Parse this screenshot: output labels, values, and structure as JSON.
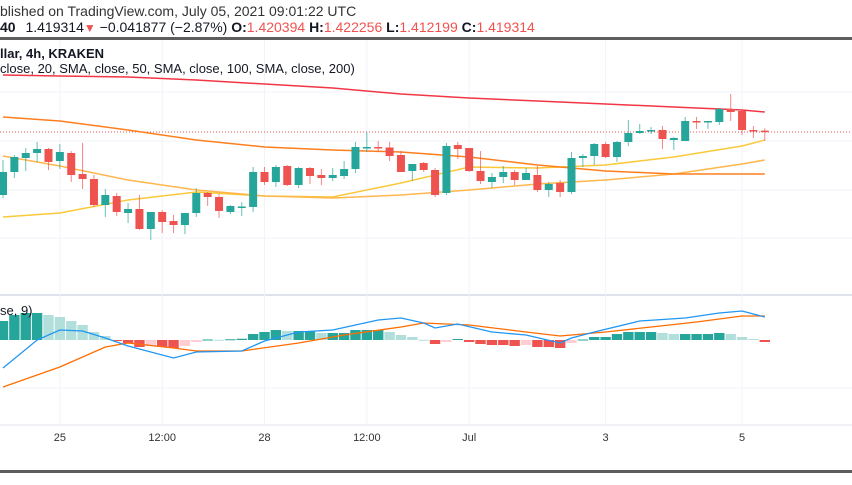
{
  "header": {
    "published": "blished on TradingView.com, July 05, 2021 09:01:22 UTC",
    "symbol_tail": "40",
    "last": "1.419314",
    "change": "−0.041877 (−2.87%)",
    "o_label": "O:",
    "o": "1.420394",
    "h_label": "H:",
    "h": "1.422256",
    "l_label": "L:",
    "l": "1.412199",
    "c_label": "C:",
    "c": "1.419314",
    "down_icon": "triangle-down-icon"
  },
  "legend": {
    "title": "llar, 4h, KRAKEN",
    "sma": "close, 20, SMA, close, 50, SMA, close, 100, SMA, close, 200)",
    "macd": "se, 9)"
  },
  "colors": {
    "up": "#26a69a",
    "down": "#ef5350",
    "up_light": "#b2dfdb",
    "down_light": "#ffcdd2",
    "sma20": "#f9c93a",
    "sma50": "#ffb74d",
    "sma100": "#ff7f1e",
    "sma200": "#f23645",
    "macd": "#2196f3",
    "signal": "#ff6d00",
    "grid": "#f0f3fa"
  },
  "chart_data": [
    {
      "type": "candlestick",
      "interval": "4h",
      "exchange": "KRAKEN",
      "x_ticks": [
        "25",
        "12:00",
        "28",
        "12:00",
        "Jul",
        "3",
        "5"
      ],
      "x_tick_times": [
        "06-25 00:00",
        "06-26 12:00",
        "06-28 00:00",
        "06-29 12:00",
        "07-01 00:00",
        "07-03 00:00",
        "07-05 00:00"
      ],
      "last_price": 1.419314,
      "grid": true,
      "candles": [
        [
          "06-24 04:00",
          1.3689,
          1.3969,
          1.3665,
          1.3873
        ],
        [
          "06-24 08:00",
          1.3873,
          1.4009,
          1.3825,
          1.3993
        ],
        [
          "06-24 12:00",
          1.3985,
          1.4065,
          1.3881,
          1.4025
        ],
        [
          "06-24 16:00",
          1.4025,
          1.4113,
          1.3953,
          1.4057
        ],
        [
          "06-24 20:00",
          1.4057,
          1.4065,
          1.3889,
          1.3953
        ],
        [
          "06-25 00:00",
          1.3961,
          1.4097,
          1.3897,
          1.4033
        ],
        [
          "06-25 04:00",
          1.4025,
          1.4041,
          1.3793,
          1.3849
        ],
        [
          "06-25 08:00",
          1.3857,
          1.4105,
          1.3737,
          1.3817
        ],
        [
          "06-25 12:00",
          1.3817,
          1.3849,
          1.3593,
          1.3609
        ],
        [
          "06-25 16:00",
          1.3609,
          1.3737,
          1.3513,
          1.3689
        ],
        [
          "06-25 20:00",
          1.3681,
          1.3705,
          1.3521,
          1.3553
        ],
        [
          "06-26 00:00",
          1.3545,
          1.3625,
          1.3465,
          1.3577
        ],
        [
          "06-26 04:00",
          1.3577,
          1.3689,
          1.3409,
          1.3417
        ],
        [
          "06-26 08:00",
          1.3417,
          1.3553,
          1.3329,
          1.3553
        ],
        [
          "06-26 12:00",
          1.3553,
          1.3569,
          1.3385,
          1.3473
        ],
        [
          "06-26 16:00",
          1.3481,
          1.3529,
          1.3385,
          1.3449
        ],
        [
          "06-26 20:00",
          1.3449,
          1.3545,
          1.3377,
          1.3545
        ],
        [
          "06-27 00:00",
          1.3545,
          1.3745,
          1.3513,
          1.3705
        ],
        [
          "06-27 04:00",
          1.3705,
          1.3713,
          1.3601,
          1.3673
        ],
        [
          "06-27 08:00",
          1.3673,
          1.3697,
          1.3505,
          1.3561
        ],
        [
          "06-27 12:00",
          1.3553,
          1.3609,
          1.3537,
          1.3601
        ],
        [
          "06-27 16:00",
          1.3593,
          1.3633,
          1.3521,
          1.3597
        ],
        [
          "06-27 20:00",
          1.3593,
          1.3913,
          1.3553,
          1.3873
        ],
        [
          "06-28 00:00",
          1.3873,
          1.3913,
          1.3769,
          1.3793
        ],
        [
          "06-28 04:00",
          1.3793,
          1.3929,
          1.3753,
          1.3913
        ],
        [
          "06-28 08:00",
          1.3921,
          1.3929,
          1.3761,
          1.3769
        ],
        [
          "06-28 12:00",
          1.3769,
          1.3913,
          1.3745,
          1.3905
        ],
        [
          "06-28 16:00",
          1.3905,
          1.3913,
          1.3777,
          1.3841
        ],
        [
          "06-28 20:00",
          1.3849,
          1.3897,
          1.3769,
          1.3825
        ],
        [
          "06-29 00:00",
          1.3825,
          1.3905,
          1.3801,
          1.3849
        ],
        [
          "06-29 04:00",
          1.3841,
          1.3961,
          1.3817,
          1.3897
        ],
        [
          "06-29 08:00",
          1.3897,
          1.4113,
          1.3865,
          1.4073
        ],
        [
          "06-29 12:00",
          1.4073,
          1.4193,
          1.4033,
          1.4073
        ],
        [
          "06-29 16:00",
          1.4073,
          1.4121,
          1.4033,
          1.4069
        ],
        [
          "06-29 20:00",
          1.4069,
          1.4113,
          1.3961,
          1.4001
        ],
        [
          "06-30 00:00",
          1.4009,
          1.4041,
          1.3873,
          1.3873
        ],
        [
          "06-30 04:00",
          1.3881,
          1.3937,
          1.3801,
          1.3937
        ],
        [
          "06-30 08:00",
          1.3945,
          1.3953,
          1.3873,
          1.3889
        ],
        [
          "06-30 12:00",
          1.3889,
          1.3905,
          1.3673,
          1.3689
        ],
        [
          "06-30 16:00",
          1.3705,
          1.4105,
          1.3689,
          1.4081
        ],
        [
          "06-30 20:00",
          1.4089,
          1.4113,
          1.3977,
          1.4057
        ],
        [
          "07-01 00:00",
          1.4065,
          1.4065,
          1.3873,
          1.3881
        ],
        [
          "07-01 04:00",
          1.3881,
          1.4041,
          1.3777,
          1.3801
        ],
        [
          "07-01 08:00",
          1.3793,
          1.3865,
          1.3745,
          1.3833
        ],
        [
          "07-01 12:00",
          1.3833,
          1.3921,
          1.3785,
          1.3873
        ],
        [
          "07-01 16:00",
          1.3873,
          1.3889,
          1.3769,
          1.3809
        ],
        [
          "07-01 20:00",
          1.3809,
          1.3905,
          1.3809,
          1.3865
        ],
        [
          "07-02 00:00",
          1.3849,
          1.3921,
          1.3713,
          1.3729
        ],
        [
          "07-02 04:00",
          1.3729,
          1.3793,
          1.3673,
          1.3777
        ],
        [
          "07-02 08:00",
          1.3785,
          1.3809,
          1.3673,
          1.3713
        ],
        [
          "07-02 12:00",
          1.3713,
          1.4033,
          1.3697,
          1.3985
        ],
        [
          "07-02 16:00",
          1.3985,
          1.4017,
          1.3913,
          1.4001
        ],
        [
          "07-02 20:00",
          1.4001,
          1.4105,
          1.3929,
          1.4097
        ],
        [
          "07-03 00:00",
          1.4097,
          1.4113,
          1.3985,
          1.3993
        ],
        [
          "07-03 04:00",
          1.3993,
          1.4121,
          1.3953,
          1.4113
        ],
        [
          "07-03 08:00",
          1.4113,
          1.4289,
          1.4081,
          1.4185
        ],
        [
          "07-03 12:00",
          1.4185,
          1.4257,
          1.4177,
          1.4201
        ],
        [
          "07-03 16:00",
          1.4201,
          1.4233,
          1.4177,
          1.4209
        ],
        [
          "07-03 20:00",
          1.4209,
          1.4241,
          1.4057,
          1.4137
        ],
        [
          "07-04 00:00",
          1.4129,
          1.4153,
          1.4049,
          1.4145
        ],
        [
          "07-04 04:00",
          1.4121,
          1.4313,
          1.4121,
          1.4281
        ],
        [
          "07-04 08:00",
          1.4281,
          1.4313,
          1.4217,
          1.4273
        ],
        [
          "07-04 12:00",
          1.4273,
          1.4281,
          1.4217,
          1.4281
        ],
        [
          "07-04 16:00",
          1.4273,
          1.4385,
          1.4249,
          1.4377
        ],
        [
          "07-04 20:00",
          1.4377,
          1.4497,
          1.4281,
          1.4353
        ],
        [
          "07-05 00:00",
          1.4361,
          1.4369,
          1.4169,
          1.4209
        ],
        [
          "07-05 04:00",
          1.4209,
          1.4241,
          1.4145,
          1.4201
        ],
        [
          "07-05 08:00",
          1.420394,
          1.422256,
          1.412199,
          1.419314
        ]
      ],
      "sma": [
        {
          "length": 20,
          "points": [
            [
              "06-24 04:00",
              1.3513
            ],
            [
              "06-25 00:00",
              1.3545
            ],
            [
              "06-26 00:00",
              1.3649
            ],
            [
              "06-27 00:00",
              1.3713
            ],
            [
              "06-28 00:00",
              1.3681
            ],
            [
              "06-29 00:00",
              1.3673
            ],
            [
              "06-30 00:00",
              1.3785
            ],
            [
              "07-01 00:00",
              1.3913
            ],
            [
              "07-02 00:00",
              1.3905
            ],
            [
              "07-03 00:00",
              1.3929
            ],
            [
              "07-04 00:00",
              1.3993
            ],
            [
              "07-05 00:00",
              1.4081
            ],
            [
              "07-05 08:00",
              1.4129
            ]
          ]
        },
        {
          "length": 50,
          "points": [
            [
              "06-24 04:00",
              1.4001
            ],
            [
              "06-25 00:00",
              1.3921
            ],
            [
              "06-26 00:00",
              1.3809
            ],
            [
              "06-27 00:00",
              1.3729
            ],
            [
              "06-28 00:00",
              1.3681
            ],
            [
              "06-29 00:00",
              1.3665
            ],
            [
              "06-30 00:00",
              1.3689
            ],
            [
              "07-01 00:00",
              1.3729
            ],
            [
              "07-02 00:00",
              1.3777
            ],
            [
              "07-03 00:00",
              1.3809
            ],
            [
              "07-04 00:00",
              1.3857
            ],
            [
              "07-05 00:00",
              1.3937
            ],
            [
              "07-05 08:00",
              1.3969
            ]
          ]
        },
        {
          "length": 100,
          "points": [
            [
              "06-24 04:00",
              1.4313
            ],
            [
              "06-25 00:00",
              1.4281
            ],
            [
              "06-26 00:00",
              1.4209
            ],
            [
              "06-27 00:00",
              1.4129
            ],
            [
              "06-28 00:00",
              1.4073
            ],
            [
              "06-29 00:00",
              1.4049
            ],
            [
              "06-30 00:00",
              1.4033
            ],
            [
              "07-01 00:00",
              1.3993
            ],
            [
              "07-02 00:00",
              1.3929
            ],
            [
              "07-03 00:00",
              1.3881
            ],
            [
              "07-04 00:00",
              1.3857
            ],
            [
              "07-05 00:00",
              1.3857
            ],
            [
              "07-05 08:00",
              1.3857
            ]
          ]
        },
        {
          "length": 200,
          "points": [
            [
              "06-24 04:00",
              1.4649
            ],
            [
              "06-25 00:00",
              1.4641
            ],
            [
              "06-26 00:00",
              1.4633
            ],
            [
              "06-27 00:00",
              1.4609
            ],
            [
              "06-28 00:00",
              1.4577
            ],
            [
              "06-29 00:00",
              1.4545
            ],
            [
              "06-30 00:00",
              1.4497
            ],
            [
              "07-01 00:00",
              1.4465
            ],
            [
              "07-02 00:00",
              1.4441
            ],
            [
              "07-03 00:00",
              1.4417
            ],
            [
              "07-04 00:00",
              1.4393
            ],
            [
              "07-05 00:00",
              1.4369
            ],
            [
              "07-05 08:00",
              1.4353
            ]
          ]
        }
      ]
    },
    {
      "type": "macd",
      "signal_length": 9,
      "histogram": [
        0.0076,
        0.01,
        0.0108,
        0.0108,
        0.01,
        0.0092,
        0.0076,
        0.006,
        0.0032,
        0.0016,
        -0.0004,
        -0.0012,
        -0.0028,
        -0.0024,
        -0.0028,
        -0.0032,
        -0.0024,
        -0.0008,
        0.0002,
        0.0001,
        0.0003,
        0.0005,
        0.0024,
        0.0032,
        0.004,
        0.0036,
        0.0036,
        0.0036,
        0.0028,
        0.0028,
        0.0028,
        0.004,
        0.004,
        0.004,
        0.0032,
        0.002,
        0.0012,
        0.0001,
        -0.0016,
        -0.0008,
        0.0004,
        -0.0008,
        -0.0016,
        -0.002,
        -0.002,
        -0.0024,
        -0.002,
        -0.0028,
        -0.0028,
        -0.0032,
        -0.0012,
        0.0002,
        0.0012,
        0.0012,
        0.0024,
        0.0032,
        0.0032,
        0.0032,
        0.0028,
        0.0024,
        0.0024,
        0.0024,
        0.0024,
        0.0028,
        0.0024,
        0.0012,
        0.0004,
        -0.0008
      ],
      "macd_line": [
        [
          "06-24 04:00",
          -0.0112
        ],
        [
          "06-24 16:00",
          0.0
        ],
        [
          "06-25 00:00",
          0.004
        ],
        [
          "06-25 08:00",
          0.0036
        ],
        [
          "06-25 16:00",
          0.0008
        ],
        [
          "06-26 00:00",
          -0.0024
        ],
        [
          "06-26 16:00",
          -0.0072
        ],
        [
          "06-27 00:00",
          -0.0048
        ],
        [
          "06-27 16:00",
          -0.0044
        ],
        [
          "06-28 00:00",
          -0.0004
        ],
        [
          "06-28 12:00",
          0.0032
        ],
        [
          "06-29 00:00",
          0.004
        ],
        [
          "06-29 16:00",
          0.008
        ],
        [
          "06-30 00:00",
          0.0088
        ],
        [
          "06-30 08:00",
          0.0068
        ],
        [
          "06-30 12:00",
          0.0048
        ],
        [
          "06-30 20:00",
          0.0064
        ],
        [
          "07-01 08:00",
          0.0032
        ],
        [
          "07-01 20:00",
          0.002
        ],
        [
          "07-02 08:00",
          -0.0012
        ],
        [
          "07-02 12:00",
          0.0008
        ],
        [
          "07-02 20:00",
          0.0032
        ],
        [
          "07-03 12:00",
          0.0076
        ],
        [
          "07-04 04:00",
          0.0088
        ],
        [
          "07-04 16:00",
          0.0108
        ],
        [
          "07-05 00:00",
          0.0116
        ],
        [
          "07-05 08:00",
          0.0092
        ]
      ],
      "signal_line": [
        [
          "06-24 04:00",
          -0.0188
        ],
        [
          "06-25 00:00",
          -0.0108
        ],
        [
          "06-25 16:00",
          -0.0028
        ],
        [
          "06-26 00:00",
          -0.0012
        ],
        [
          "06-26 16:00",
          -0.0032
        ],
        [
          "06-27 00:00",
          -0.0044
        ],
        [
          "06-27 16:00",
          -0.0044
        ],
        [
          "06-28 12:00",
          -0.0012
        ],
        [
          "06-29 04:00",
          0.002
        ],
        [
          "06-30 00:00",
          0.0052
        ],
        [
          "06-30 08:00",
          0.0068
        ],
        [
          "07-01 00:00",
          0.006
        ],
        [
          "07-01 20:00",
          0.0032
        ],
        [
          "07-02 08:00",
          0.0016
        ],
        [
          "07-03 00:00",
          0.0032
        ],
        [
          "07-03 16:00",
          0.0052
        ],
        [
          "07-04 08:00",
          0.0072
        ],
        [
          "07-05 00:00",
          0.0096
        ],
        [
          "07-05 08:00",
          0.0096
        ]
      ]
    }
  ]
}
